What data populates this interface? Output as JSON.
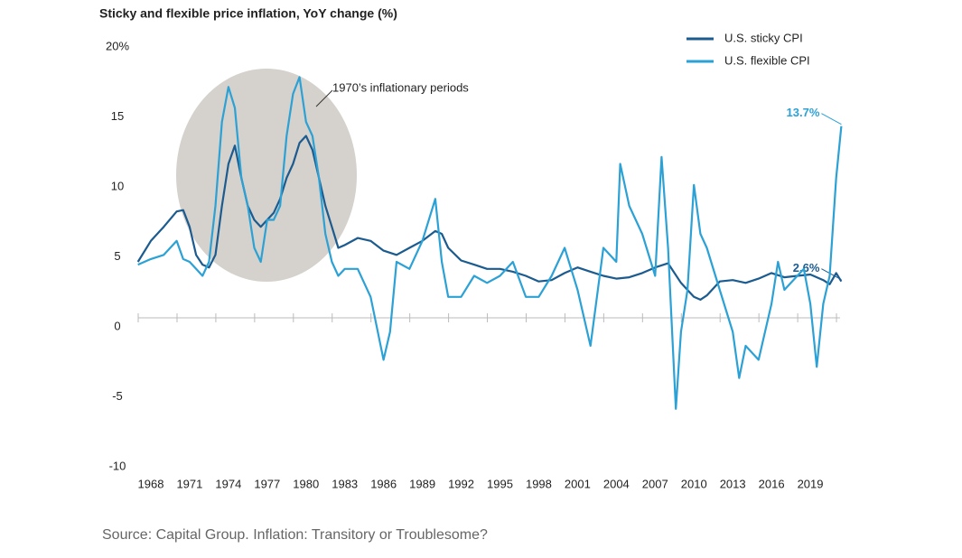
{
  "chart_data": {
    "type": "line",
    "title": "Sticky and flexible price inflation, YoY change (%)",
    "source": "Source: Capital Group. Inflation: Transitory or Troublesome?",
    "annotation": "1970’s inflationary periods",
    "legend": "top-right",
    "xlim": [
      1966.5,
      2022
    ],
    "xticks": [
      1968,
      1971,
      1974,
      1977,
      1980,
      1983,
      1986,
      1989,
      1992,
      1995,
      1998,
      2001,
      2004,
      2007,
      2010,
      2013,
      2016,
      2019
    ],
    "ylim": [
      -10,
      20
    ],
    "yticks": [
      {
        "value": 20,
        "label": "20%"
      },
      15,
      10,
      5,
      0,
      -5,
      -10
    ],
    "series": [
      {
        "name": "U.S. sticky CPI",
        "color": "#1b5b8f",
        "x": [
          1967,
          1968,
          1969,
          1970,
          1970.5,
          1971,
          1971.5,
          1972,
          1972.5,
          1973,
          1973.5,
          1974,
          1974.5,
          1975,
          1975.5,
          1976,
          1976.5,
          1977,
          1977.5,
          1978,
          1978.5,
          1979,
          1979.5,
          1980,
          1980.5,
          1981,
          1981.5,
          1982,
          1982.5,
          1983,
          1984,
          1985,
          1986,
          1987,
          1988,
          1989,
          1990,
          1990.5,
          1991,
          1992,
          1993,
          1994,
          1995,
          1996,
          1997,
          1998,
          1999,
          2000,
          2001,
          2002,
          2003,
          2004,
          2005,
          2006,
          2007,
          2008,
          2009,
          2010,
          2010.5,
          2011,
          2012,
          2013,
          2014,
          2015,
          2016,
          2017,
          2018,
          2019,
          2020,
          2020.5,
          2021,
          2021.4
        ],
        "values": [
          4.0,
          5.5,
          6.5,
          7.6,
          7.7,
          6.5,
          4.5,
          3.8,
          3.6,
          4.5,
          8,
          11,
          12.3,
          10,
          8,
          7,
          6.5,
          7,
          7.5,
          8.5,
          10,
          11,
          12.5,
          13,
          12,
          10,
          8,
          6.5,
          5,
          5.2,
          5.7,
          5.5,
          4.8,
          4.5,
          5,
          5.5,
          6.2,
          6.0,
          5,
          4.1,
          3.8,
          3.5,
          3.5,
          3.3,
          3.0,
          2.6,
          2.7,
          3.2,
          3.6,
          3.3,
          3.0,
          2.8,
          2.9,
          3.2,
          3.6,
          3.9,
          2.5,
          1.5,
          1.3,
          1.6,
          2.6,
          2.7,
          2.5,
          2.8,
          3.2,
          2.9,
          3.0,
          3.1,
          2.7,
          2.4,
          3.2,
          2.6
        ],
        "value_labels": [
          null,
          null,
          null,
          null,
          null,
          null,
          null,
          null,
          null,
          null,
          null,
          null,
          null,
          null,
          null,
          null,
          null,
          null,
          null,
          null,
          null,
          null,
          null,
          null,
          null,
          null,
          null,
          null,
          null,
          null,
          null,
          null,
          null,
          null,
          null,
          null,
          null,
          null,
          null,
          null,
          null,
          null,
          null,
          null,
          null,
          null,
          null,
          null,
          null,
          null,
          null,
          null,
          null,
          null,
          null,
          null,
          null,
          null,
          null,
          null,
          null,
          null,
          null,
          null,
          null,
          null,
          null,
          null,
          null,
          null,
          null,
          "2.6%"
        ]
      },
      {
        "name": "U.S. flexible CPI",
        "color": "#2ba1d5",
        "x": [
          1967,
          1968,
          1969,
          1970,
          1970.5,
          1971,
          1971.5,
          1972,
          1972.5,
          1973,
          1973.5,
          1974,
          1974.5,
          1975,
          1975.5,
          1976,
          1976.5,
          1977,
          1977.5,
          1978,
          1978.5,
          1979,
          1979.5,
          1980,
          1980.5,
          1981,
          1981.5,
          1982,
          1982.5,
          1983,
          1984,
          1985,
          1986,
          1986.5,
          1987,
          1988,
          1989,
          1990,
          1990.5,
          1991,
          1992,
          1993,
          1994,
          1995,
          1996,
          1997,
          1998,
          1999,
          2000,
          2001,
          2002,
          2003,
          2004,
          2004.3,
          2005,
          2006,
          2007,
          2007.5,
          2008,
          2008.6,
          2009,
          2009.5,
          2010,
          2010.5,
          2011,
          2012,
          2013,
          2013.5,
          2014,
          2015,
          2016,
          2016.5,
          2017,
          2018,
          2018.5,
          2019,
          2019.5,
          2020,
          2020.5,
          2021,
          2021.4
        ],
        "values": [
          3.8,
          4.2,
          4.5,
          5.5,
          4.2,
          4,
          3.5,
          3,
          4,
          8,
          14,
          16.5,
          15,
          10,
          8,
          5,
          4,
          7,
          7,
          8,
          13,
          16,
          17.2,
          14,
          13,
          10,
          6,
          4,
          3,
          3.5,
          3.5,
          1.5,
          -3,
          -1,
          4,
          3.5,
          5.5,
          8.5,
          4,
          1.5,
          1.5,
          3,
          2.5,
          3,
          4,
          1.5,
          1.5,
          3,
          5,
          2,
          -2,
          5,
          4,
          11,
          8,
          6,
          3,
          11.5,
          5,
          -6.5,
          -1,
          2,
          9.5,
          6,
          5,
          2,
          -1,
          -4.3,
          -2,
          -3,
          1,
          4,
          2,
          3,
          3.5,
          1,
          -3.5,
          1,
          3,
          10,
          13.7
        ],
        "value_labels": [
          null,
          null,
          null,
          null,
          null,
          null,
          null,
          null,
          null,
          null,
          null,
          null,
          null,
          null,
          null,
          null,
          null,
          null,
          null,
          null,
          null,
          null,
          null,
          null,
          null,
          null,
          null,
          null,
          null,
          null,
          null,
          null,
          null,
          null,
          null,
          null,
          null,
          null,
          null,
          null,
          null,
          null,
          null,
          null,
          null,
          null,
          null,
          null,
          null,
          null,
          null,
          null,
          null,
          null,
          null,
          null,
          null,
          null,
          null,
          null,
          null,
          null,
          null,
          null,
          null,
          null,
          null,
          null,
          null,
          null,
          null,
          null,
          null,
          null,
          null,
          null,
          null,
          null,
          null,
          null,
          "13.7%"
        ]
      }
    ]
  }
}
